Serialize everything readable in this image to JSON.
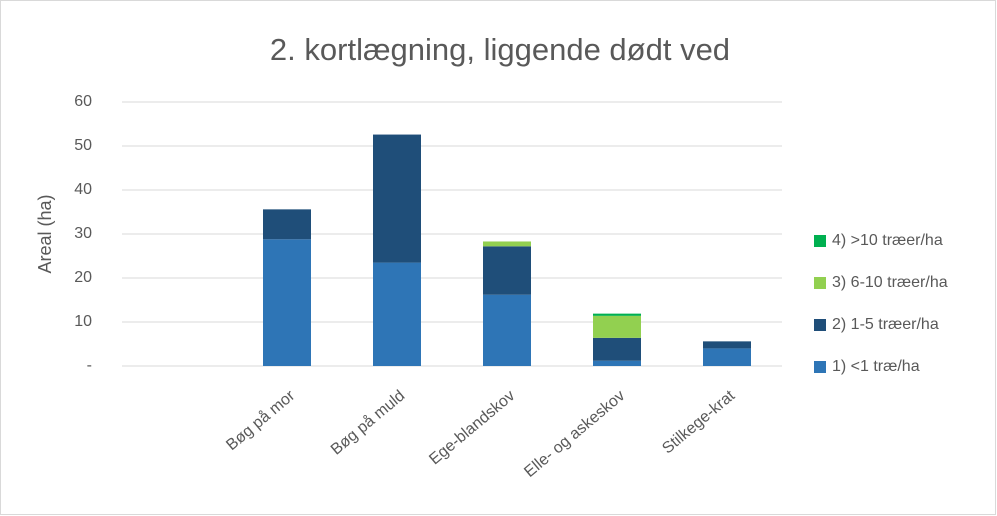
{
  "chart_data": {
    "type": "stacked_bar",
    "title": "2. kortlægning, liggende dødt ved",
    "y_label": "Areal (ha)",
    "categories": [
      null,
      "Bøg på mor",
      "Bøg på muld",
      "Ege-blandskov",
      "Elle- og askeskov",
      "Stilkege-krat"
    ],
    "series": [
      {
        "name": "1) <1 træ/ha",
        "color": "#2e75b6",
        "values": [
          null,
          28.8,
          23.5,
          16.2,
          1.2,
          4.0
        ]
      },
      {
        "name": "2) 1-5 træer/ha",
        "color": "#1f4e79",
        "values": [
          null,
          6.8,
          29.1,
          11.0,
          5.2,
          1.6
        ]
      },
      {
        "name": "3) 6-10 træer/ha",
        "color": "#92d050",
        "values": [
          null,
          0,
          0,
          1.1,
          5.0,
          0
        ]
      },
      {
        "name": "4) >10 træer/ha",
        "color": "#00b050",
        "values": [
          null,
          0,
          0,
          0,
          0.5,
          0
        ]
      }
    ],
    "ylim": [
      0,
      60
    ],
    "yticks": [
      {
        "value": 0,
        "label": "-"
      },
      10,
      20,
      30,
      40,
      50,
      60
    ],
    "grid": true,
    "legend": "right"
  }
}
